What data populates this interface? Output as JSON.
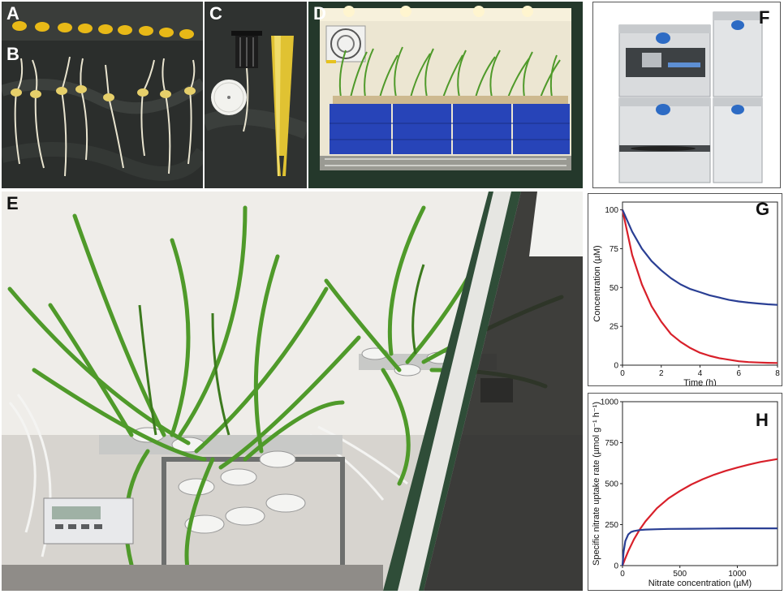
{
  "panels": {
    "a": "A",
    "b": "B",
    "c": "C",
    "d": "D",
    "e": "E",
    "f": "F",
    "g": "G",
    "h": "H"
  },
  "photo_colors": {
    "dark_cloth": "#2a2c2a",
    "seed": "#e8b917",
    "root": "#e9e4cf",
    "yellow_tool": "#e0c232",
    "chamber_wall": "#ece6d2",
    "blue_bin": "#2744b8",
    "leaf_green": "#4f9a2a",
    "frame_green": "#2f4d38",
    "instrument_grey": "#d9dbdd"
  },
  "chart_data": [
    {
      "panel": "G",
      "type": "line",
      "xlabel": "Time (h)",
      "ylabel": "Concentration (µM)",
      "xlim": [
        0,
        8
      ],
      "ylim": [
        0,
        105
      ],
      "xticks": [
        0,
        2,
        4,
        6,
        8
      ],
      "yticks": [
        0,
        25,
        50,
        75,
        100
      ],
      "series": [
        {
          "color": "#d8202a",
          "x": [
            0,
            0.5,
            1,
            1.5,
            2,
            2.5,
            3,
            3.5,
            4,
            4.5,
            5,
            5.5,
            6,
            6.5,
            7,
            7.5,
            8
          ],
          "y": [
            100,
            71,
            52,
            38,
            28,
            20,
            15,
            11,
            8,
            6,
            4.5,
            3.5,
            2.5,
            2,
            1.7,
            1.5,
            1.4
          ]
        },
        {
          "color": "#2a3f94",
          "x": [
            0,
            0.5,
            1,
            1.5,
            2,
            2.5,
            3,
            3.5,
            4,
            4.5,
            5,
            5.5,
            6,
            6.5,
            7,
            7.5,
            8
          ],
          "y": [
            100,
            86,
            75,
            67,
            61,
            56,
            52,
            49,
            47,
            45,
            43.5,
            42,
            41,
            40.3,
            39.7,
            39.2,
            38.8
          ]
        }
      ]
    },
    {
      "panel": "H",
      "type": "line",
      "xlabel": "Nitrate concentration (µM)",
      "ylabel": "Specific nitrate uptake rate (µmol g⁻¹ h⁻¹)",
      "xlim": [
        0,
        1350
      ],
      "ylim": [
        0,
        1000
      ],
      "xticks": [
        0,
        500,
        1000
      ],
      "yticks": [
        0,
        250,
        500,
        750,
        1000
      ],
      "series": [
        {
          "color": "#d8202a",
          "x": [
            0,
            25,
            50,
            100,
            150,
            200,
            300,
            400,
            500,
            600,
            700,
            800,
            900,
            1000,
            1100,
            1200,
            1350
          ],
          "y": [
            0,
            45,
            88,
            160,
            220,
            270,
            350,
            410,
            455,
            495,
            527,
            555,
            578,
            598,
            616,
            632,
            650
          ]
        },
        {
          "color": "#2a3f94",
          "x": [
            0,
            10,
            25,
            50,
            75,
            100,
            150,
            200,
            300,
            400,
            600,
            800,
            1000,
            1200,
            1350
          ],
          "y": [
            0,
            85,
            150,
            190,
            205,
            211,
            217,
            220,
            222,
            224,
            225,
            226,
            227,
            227,
            227
          ]
        }
      ]
    }
  ]
}
